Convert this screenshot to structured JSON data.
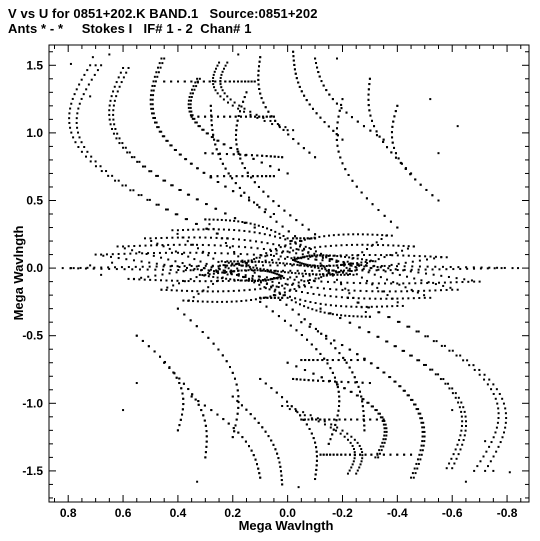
{
  "header": {
    "line1": "V vs U for 0851+202.K BAND.1   Source:0851+202",
    "line2": "Ants * - *     Stokes I   IF# 1 - 2  Chan# 1"
  },
  "chart_data": {
    "type": "scatter",
    "title": "V vs U for 0851+202.K BAND.1   Source:0851+202",
    "subtitle": "Ants * - *     Stokes I   IF# 1 - 2  Chan# 1",
    "xlabel": "Mega Wavlngth",
    "ylabel": "Mega Wavlngth",
    "xlim": [
      0.87,
      -0.88
    ],
    "ylim": [
      -1.73,
      1.65
    ],
    "x_ticks": [
      0.8,
      0.6,
      0.4,
      0.2,
      0.0,
      -0.2,
      -0.4,
      -0.6,
      -0.8
    ],
    "x_tick_labels": [
      "0.8",
      "0.6",
      "0.4",
      "0.2",
      "0.0",
      "-0.2",
      "-0.4",
      "-0.6",
      "-0.8"
    ],
    "y_ticks": [
      1.5,
      1.0,
      0.5,
      0.0,
      -0.5,
      -1.0,
      -1.5
    ],
    "y_tick_labels": [
      "1.5",
      "1.0",
      "0.5",
      "0.0",
      "-0.5",
      "-1.0",
      "-1.5"
    ],
    "grid": false,
    "legend": "none",
    "marker_color": "#000000",
    "series": [
      {
        "tracks": [
          {
            "x0": 0.78,
            "y0": 0.0,
            "x1": -0.82,
            "y1": 0.0,
            "ry": 0.02,
            "bulge": 0.03,
            "n": 60
          },
          {
            "x0": 0.68,
            "y0": 0.1,
            "x1": -0.7,
            "y1": -0.1,
            "ry": 0.09,
            "bulge": 0.06,
            "n": 56
          },
          {
            "x0": 0.6,
            "y0": 0.16,
            "x1": -0.62,
            "y1": -0.16,
            "ry": 0.13,
            "bulge": 0.05,
            "n": 52
          },
          {
            "x0": 0.56,
            "y0": -0.08,
            "x1": -0.58,
            "y1": 0.08,
            "ry": 0.08,
            "bulge": -0.05,
            "n": 50
          },
          {
            "x0": 0.5,
            "y0": 0.22,
            "x1": -0.52,
            "y1": -0.22,
            "ry": 0.16,
            "bulge": 0.02,
            "n": 48
          },
          {
            "x0": 0.46,
            "y0": -0.16,
            "x1": -0.46,
            "y1": 0.16,
            "ry": 0.13,
            "bulge": -0.02,
            "n": 46
          },
          {
            "x0": 0.4,
            "y0": 0.28,
            "x1": -0.42,
            "y1": -0.28,
            "ry": 0.2,
            "bulge": 0.0,
            "n": 44
          },
          {
            "x0": 0.36,
            "y0": -0.24,
            "x1": -0.38,
            "y1": 0.24,
            "ry": 0.18,
            "bulge": 0.0,
            "n": 42
          },
          {
            "x0": 0.3,
            "y0": 0.36,
            "x1": -0.3,
            "y1": -0.36,
            "ry": 0.22,
            "bulge": 0.0,
            "n": 40
          },
          {
            "x0": 0.22,
            "y0": 0.05,
            "x1": -0.24,
            "y1": -0.05,
            "ry": 0.03,
            "bulge": 0.0,
            "n": 36
          },
          {
            "x0": 0.3,
            "y0": -0.05,
            "x1": 0.02,
            "y1": -0.06,
            "ry": 0.04,
            "bulge": -0.04,
            "n": 26
          },
          {
            "x0": -0.02,
            "y0": 0.06,
            "x1": -0.32,
            "y1": 0.05,
            "ry": 0.04,
            "bulge": 0.04,
            "n": 26
          },
          {
            "x0": 0.22,
            "y0": 1.52,
            "x1": -0.02,
            "y1": 1.02,
            "ry": 0.0,
            "bulge": 0.12,
            "n": 22
          },
          {
            "x0": 0.32,
            "y0": 1.4,
            "x1": 0.0,
            "y1": 0.7,
            "ry": 0.0,
            "bulge": 0.16,
            "n": 26
          },
          {
            "x0": 0.45,
            "y0": 1.55,
            "x1": 0.05,
            "y1": 0.4,
            "ry": 0.0,
            "bulge": 0.2,
            "n": 34
          },
          {
            "x0": 0.58,
            "y0": 1.48,
            "x1": 0.12,
            "y1": 0.3,
            "ry": 0.0,
            "bulge": 0.24,
            "n": 34
          },
          {
            "x0": 0.68,
            "y0": 1.5,
            "x1": 0.22,
            "y1": 0.22,
            "ry": 0.0,
            "bulge": 0.28,
            "n": 36
          },
          {
            "x0": 0.1,
            "y0": 1.56,
            "x1": -0.1,
            "y1": 0.82,
            "ry": 0.0,
            "bulge": 0.08,
            "n": 22
          },
          {
            "x0": -0.02,
            "y0": 1.6,
            "x1": -0.2,
            "y1": 0.95,
            "ry": 0.0,
            "bulge": 0.05,
            "n": 20
          },
          {
            "x0": 0.15,
            "y0": 1.3,
            "x1": -0.1,
            "y1": 0.25,
            "ry": 0.0,
            "bulge": 0.14,
            "n": 30
          },
          {
            "x0": 0.28,
            "y0": 1.2,
            "x1": -0.05,
            "y1": 0.2,
            "ry": 0.0,
            "bulge": 0.1,
            "n": 28
          },
          {
            "x0": -0.1,
            "y0": 1.55,
            "x1": -0.35,
            "y1": 0.95,
            "ry": 0.0,
            "bulge": 0.06,
            "n": 18
          },
          {
            "x0": -0.3,
            "y0": 1.4,
            "x1": -0.45,
            "y1": 0.7,
            "ry": 0.0,
            "bulge": 0.06,
            "n": 18
          },
          {
            "x0": -0.4,
            "y0": 1.2,
            "x1": -0.55,
            "y1": 0.5,
            "ry": 0.0,
            "bulge": 0.08,
            "n": 18
          },
          {
            "x0": -0.2,
            "y0": 1.25,
            "x1": -0.4,
            "y1": 0.3,
            "ry": 0.0,
            "bulge": 0.1,
            "n": 22
          },
          {
            "x0": -0.25,
            "y0": -1.52,
            "x1": 0.0,
            "y1": -1.02,
            "ry": 0.0,
            "bulge": -0.12,
            "n": 22
          },
          {
            "x0": -0.33,
            "y0": -1.4,
            "x1": 0.0,
            "y1": -0.7,
            "ry": 0.0,
            "bulge": -0.16,
            "n": 26
          },
          {
            "x0": -0.46,
            "y0": -1.55,
            "x1": -0.05,
            "y1": -0.4,
            "ry": 0.0,
            "bulge": -0.2,
            "n": 34
          },
          {
            "x0": -0.6,
            "y0": -1.48,
            "x1": -0.12,
            "y1": -0.3,
            "ry": 0.0,
            "bulge": -0.24,
            "n": 34
          },
          {
            "x0": -0.72,
            "y0": -1.5,
            "x1": -0.22,
            "y1": -0.22,
            "ry": 0.0,
            "bulge": -0.28,
            "n": 36
          },
          {
            "x0": -0.1,
            "y0": -1.56,
            "x1": 0.1,
            "y1": -0.82,
            "ry": 0.0,
            "bulge": -0.08,
            "n": 22
          },
          {
            "x0": 0.02,
            "y0": -1.6,
            "x1": 0.2,
            "y1": -0.95,
            "ry": 0.0,
            "bulge": -0.05,
            "n": 20
          },
          {
            "x0": -0.15,
            "y0": -1.3,
            "x1": 0.1,
            "y1": -0.25,
            "ry": 0.0,
            "bulge": -0.14,
            "n": 30
          },
          {
            "x0": -0.28,
            "y0": -1.2,
            "x1": 0.05,
            "y1": -0.2,
            "ry": 0.0,
            "bulge": -0.1,
            "n": 28
          },
          {
            "x0": 0.1,
            "y0": -1.55,
            "x1": 0.35,
            "y1": -0.95,
            "ry": 0.0,
            "bulge": -0.06,
            "n": 18
          },
          {
            "x0": 0.3,
            "y0": -1.4,
            "x1": 0.45,
            "y1": -0.7,
            "ry": 0.0,
            "bulge": -0.06,
            "n": 18
          },
          {
            "x0": 0.4,
            "y0": -1.2,
            "x1": 0.55,
            "y1": -0.5,
            "ry": 0.0,
            "bulge": -0.08,
            "n": 18
          },
          {
            "x0": 0.2,
            "y0": -1.25,
            "x1": 0.4,
            "y1": -0.3,
            "ry": 0.0,
            "bulge": -0.1,
            "n": 22
          },
          {
            "x0": 0.45,
            "y0": 1.38,
            "x1": 0.12,
            "y1": 1.38,
            "ry": 0.0,
            "bulge": -0.04,
            "n": 18
          },
          {
            "x0": 0.35,
            "y0": 1.12,
            "x1": 0.05,
            "y1": 1.12,
            "ry": 0.0,
            "bulge": -0.03,
            "n": 16
          },
          {
            "x0": 0.3,
            "y0": 0.85,
            "x1": 0.02,
            "y1": 0.82,
            "ry": 0.0,
            "bulge": -0.03,
            "n": 14
          },
          {
            "x0": 0.28,
            "y0": 0.68,
            "x1": 0.05,
            "y1": 0.68,
            "ry": 0.0,
            "bulge": -0.02,
            "n": 12
          },
          {
            "x0": -0.12,
            "y0": -1.38,
            "x1": -0.45,
            "y1": -1.38,
            "ry": 0.0,
            "bulge": 0.04,
            "n": 18
          },
          {
            "x0": -0.05,
            "y0": -1.12,
            "x1": -0.35,
            "y1": -1.12,
            "ry": 0.0,
            "bulge": 0.03,
            "n": 16
          },
          {
            "x0": -0.02,
            "y0": -0.82,
            "x1": -0.3,
            "y1": -0.85,
            "ry": 0.0,
            "bulge": 0.03,
            "n": 14
          },
          {
            "x0": -0.05,
            "y0": -0.68,
            "x1": -0.28,
            "y1": -0.68,
            "ry": 0.0,
            "bulge": 0.02,
            "n": 12
          },
          {
            "x0": -0.1,
            "y0": 0.22,
            "x1": -0.02,
            "y1": 0.22,
            "ry": 0.0,
            "bulge": 0.0,
            "n": 6
          },
          {
            "x0": 0.02,
            "y0": -0.22,
            "x1": 0.1,
            "y1": -0.22,
            "ry": 0.0,
            "bulge": 0.0,
            "n": 6
          }
        ],
        "points": [
          [
            0.79,
            1.51
          ],
          [
            0.71,
            1.56
          ],
          [
            0.72,
            1.27
          ],
          [
            0.7,
            1.5
          ],
          [
            0.65,
            1.58
          ],
          [
            0.79,
            0.0
          ],
          [
            0.72,
            0.02
          ],
          [
            0.68,
            -0.05
          ],
          [
            0.64,
            0.04
          ],
          [
            -0.84,
            0.0
          ],
          [
            -0.81,
            -1.51
          ],
          [
            -0.75,
            -1.5
          ],
          [
            -0.72,
            -1.28
          ],
          [
            -0.65,
            -1.58
          ],
          [
            -0.6,
            -1.05
          ],
          [
            -0.62,
            1.05
          ],
          [
            -0.55,
            0.85
          ],
          [
            0.55,
            -0.85
          ],
          [
            0.6,
            -1.05
          ],
          [
            0.33,
            -1.58
          ],
          [
            0.18,
            1.58
          ],
          [
            -0.18,
            1.55
          ],
          [
            0.02,
            1.65
          ],
          [
            -0.04,
            -1.62
          ],
          [
            -0.52,
            1.25
          ]
        ]
      }
    ]
  }
}
